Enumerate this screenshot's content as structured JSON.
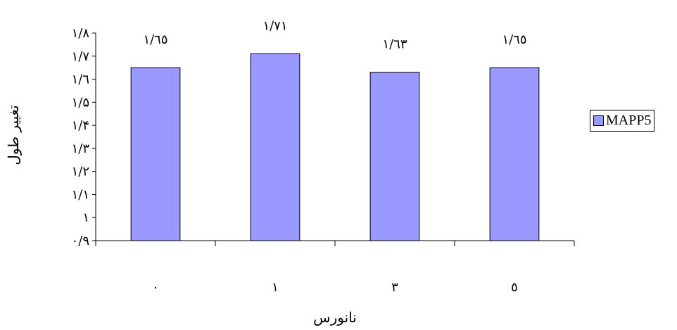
{
  "chart_data": {
    "type": "bar",
    "categories": [
      "٠",
      "١",
      "٣",
      "٥"
    ],
    "series": [
      {
        "name": "MAPP5",
        "values": [
          1.65,
          1.71,
          1.63,
          1.65
        ],
        "color": "#9999ff"
      }
    ],
    "data_labels": [
      "١/٦٥",
      "١/٧١",
      "١/٦٣",
      "١/٦٥"
    ],
    "y_ticks": [
      0.9,
      1,
      1.1,
      1.2,
      1.3,
      1.4,
      1.5,
      1.6,
      1.7,
      1.8
    ],
    "y_tick_labels": [
      "٠/٩",
      "١",
      "١/١",
      "١/٢",
      "١/٣",
      "١/۴",
      "١/۵",
      "١/٦",
      "١/٧",
      "١/٨"
    ],
    "ylim": [
      0.9,
      1.8
    ],
    "xlabel": "نانورس",
    "ylabel": "تغییر طول",
    "grid": false,
    "legend_position": "right"
  }
}
